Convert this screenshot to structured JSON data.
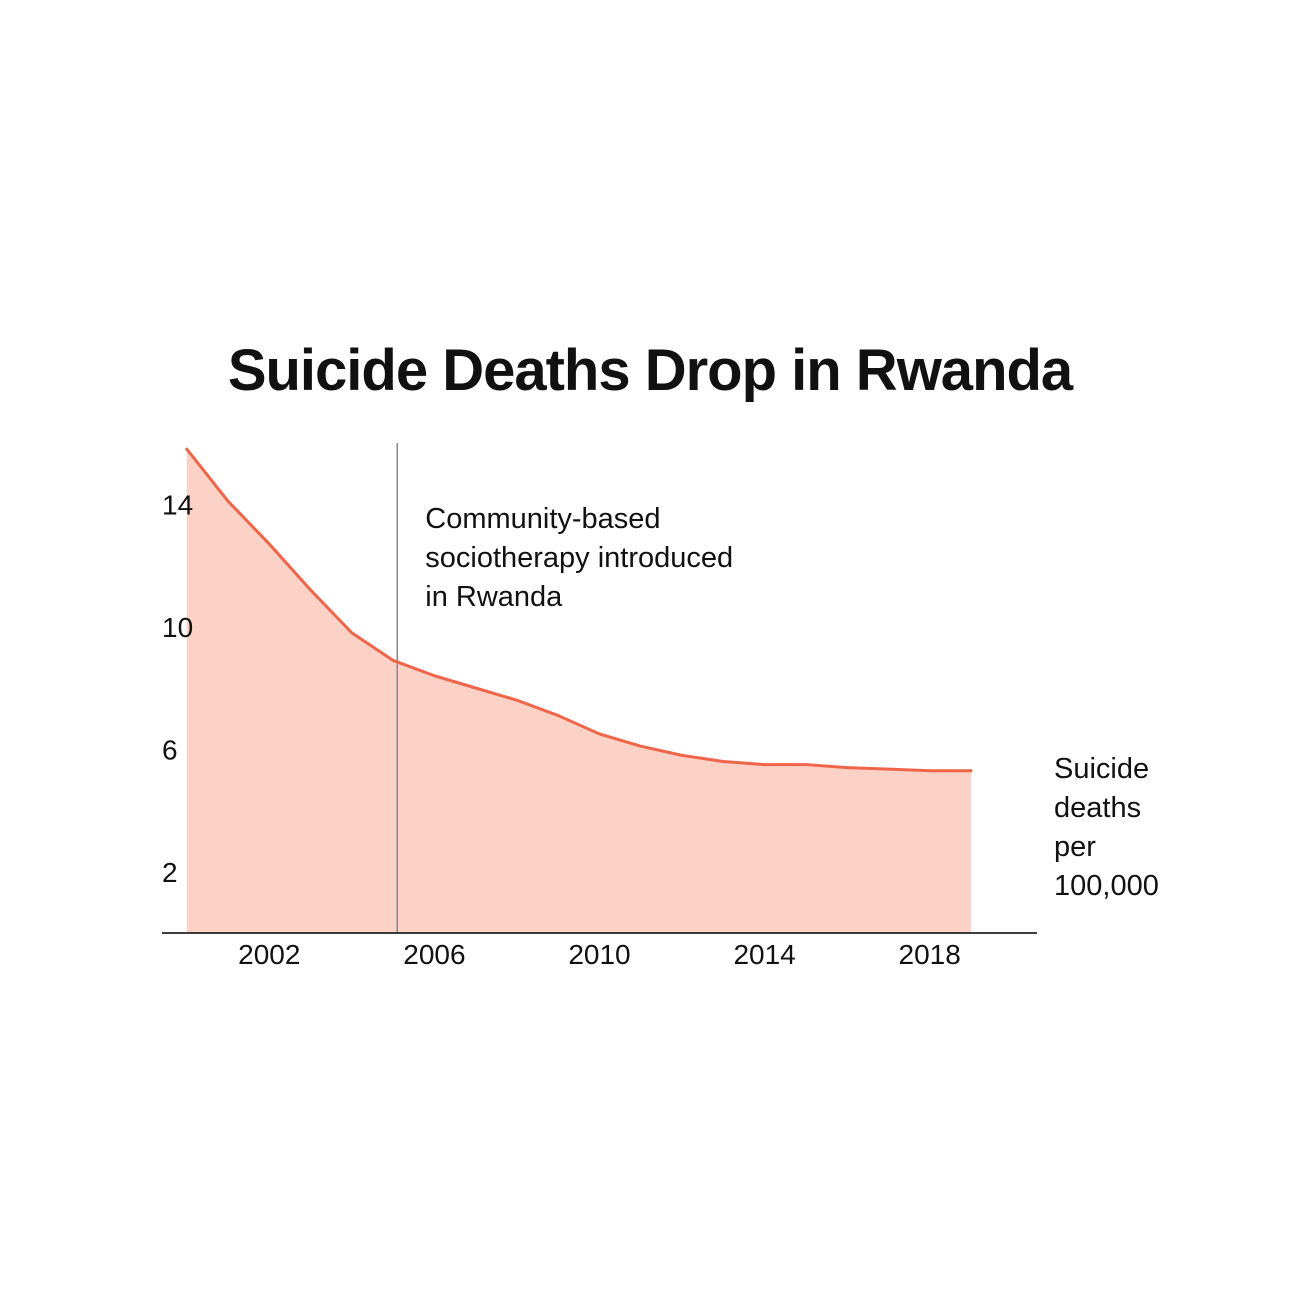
{
  "chart_data": {
    "type": "area",
    "title": "Suicide Deaths Drop in Rwanda",
    "xlabel": "",
    "ylabel": "",
    "x": [
      2000,
      2001,
      2002,
      2003,
      2004,
      2005,
      2006,
      2007,
      2008,
      2009,
      2010,
      2011,
      2012,
      2013,
      2014,
      2015,
      2016,
      2017,
      2018,
      2019
    ],
    "series": [
      {
        "name": "Suicide deaths per 100,000",
        "values": [
          15.8,
          14.1,
          12.7,
          11.2,
          9.8,
          8.9,
          8.4,
          8.0,
          7.6,
          7.1,
          6.5,
          6.1,
          5.8,
          5.6,
          5.5,
          5.5,
          5.4,
          5.35,
          5.3,
          5.3
        ]
      }
    ],
    "xlim": [
      1999.4,
      2020.6
    ],
    "ylim": [
      0,
      16
    ],
    "x_ticks": [
      2002,
      2006,
      2010,
      2014,
      2018
    ],
    "y_ticks": [
      2,
      6,
      10,
      14
    ],
    "grid": false,
    "legend": "none",
    "annotations": [
      {
        "x": 2005.1,
        "lines": [
          "Community-based",
          "sociotherapy introduced",
          "in Rwanda"
        ]
      }
    ],
    "series_label": [
      "Suicide",
      "deaths",
      "per",
      "100,000"
    ]
  },
  "colors": {
    "line": "#ef6549",
    "area": "#fcd1c6",
    "axis": "#222222",
    "annotation_line": "#888888",
    "text": "#111111"
  }
}
